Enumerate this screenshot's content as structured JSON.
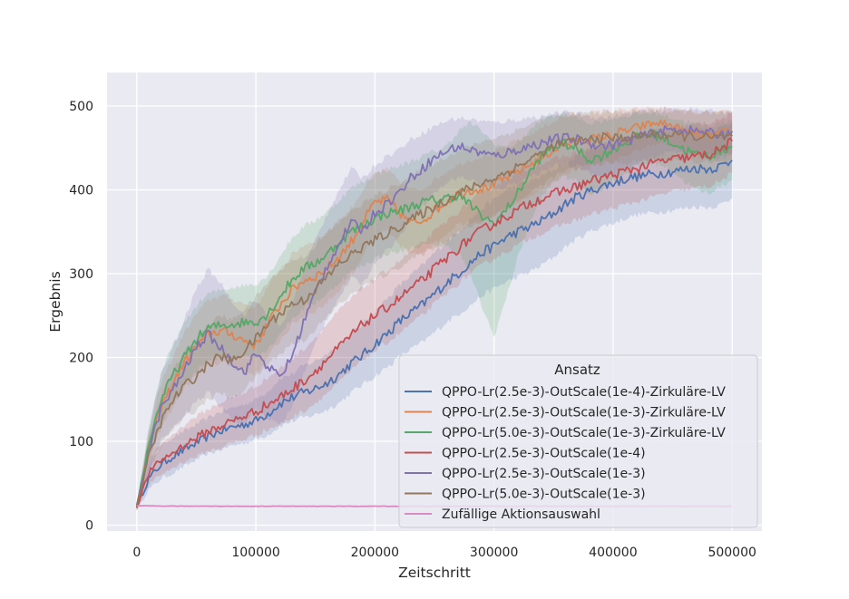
{
  "chart_data": {
    "type": "line",
    "xlabel": "Zeitschritt",
    "ylabel": "Ergebnis",
    "xlim": [
      -25000,
      525000
    ],
    "ylim": [
      -7,
      540
    ],
    "xticks": [
      0,
      100000,
      200000,
      300000,
      400000,
      500000
    ],
    "yticks": [
      0,
      100,
      200,
      300,
      400,
      500
    ],
    "grid": true,
    "legend": {
      "title": "Ansatz",
      "placement": "lower-right"
    },
    "x": [
      0,
      10000,
      20000,
      30000,
      40000,
      50000,
      60000,
      70000,
      80000,
      90000,
      100000,
      110000,
      120000,
      130000,
      140000,
      150000,
      160000,
      170000,
      180000,
      190000,
      200000,
      210000,
      220000,
      230000,
      240000,
      250000,
      260000,
      270000,
      280000,
      290000,
      300000,
      310000,
      320000,
      330000,
      340000,
      350000,
      360000,
      370000,
      380000,
      390000,
      400000,
      410000,
      420000,
      430000,
      440000,
      450000,
      460000,
      470000,
      480000,
      490000,
      500000
    ],
    "series": [
      {
        "name": "QPPO-Lr(2.5e-3)-OutScale(1e-4)-Zirkuläre-LV",
        "color": "#4c72b0",
        "values": [
          22,
          55,
          72,
          82,
          90,
          98,
          106,
          112,
          117,
          120,
          125,
          133,
          145,
          152,
          158,
          163,
          170,
          180,
          193,
          203,
          216,
          228,
          242,
          253,
          263,
          276,
          289,
          300,
          313,
          325,
          333,
          343,
          350,
          356,
          363,
          372,
          383,
          392,
          398,
          404,
          408,
          413,
          416,
          418,
          420,
          422,
          424,
          426,
          425,
          428,
          435
        ],
        "upper": [
          26,
          70,
          95,
          105,
          112,
          120,
          128,
          135,
          140,
          144,
          150,
          160,
          175,
          180,
          190,
          196,
          205,
          215,
          228,
          240,
          255,
          270,
          285,
          298,
          310,
          325,
          338,
          350,
          365,
          378,
          388,
          400,
          405,
          410,
          416,
          424,
          432,
          440,
          446,
          452,
          456,
          460,
          462,
          465,
          466,
          468,
          470,
          472,
          471,
          474,
          480
        ],
        "lower": [
          18,
          42,
          55,
          62,
          70,
          78,
          85,
          90,
          95,
          98,
          102,
          108,
          118,
          124,
          128,
          132,
          138,
          146,
          158,
          168,
          178,
          188,
          200,
          210,
          218,
          230,
          242,
          252,
          262,
          274,
          282,
          290,
          296,
          302,
          310,
          320,
          332,
          342,
          350,
          356,
          360,
          366,
          370,
          372,
          374,
          376,
          378,
          380,
          379,
          382,
          390
        ]
      },
      {
        "name": "QPPO-Lr(2.5e-3)-OutScale(1e-3)-Zirkuläre-LV",
        "color": "#dd8452",
        "values": [
          22,
          92,
          140,
          168,
          195,
          212,
          228,
          232,
          228,
          220,
          215,
          240,
          262,
          280,
          292,
          297,
          307,
          320,
          338,
          362,
          385,
          388,
          374,
          360,
          364,
          375,
          386,
          396,
          400,
          402,
          406,
          414,
          422,
          430,
          438,
          448,
          454,
          458,
          460,
          462,
          466,
          470,
          474,
          478,
          480,
          476,
          470,
          466,
          464,
          466,
          470
        ],
        "upper": [
          26,
          110,
          168,
          200,
          230,
          252,
          268,
          274,
          270,
          264,
          260,
          284,
          305,
          322,
          334,
          340,
          350,
          362,
          378,
          400,
          420,
          424,
          412,
          400,
          402,
          412,
          422,
          430,
          436,
          440,
          444,
          452,
          460,
          466,
          474,
          482,
          488,
          490,
          492,
          493,
          494,
          495,
          496,
          497,
          498,
          496,
          494,
          492,
          491,
          492,
          494
        ],
        "lower": [
          18,
          76,
          114,
          140,
          164,
          178,
          190,
          194,
          190,
          184,
          180,
          200,
          220,
          238,
          250,
          256,
          266,
          280,
          298,
          322,
          346,
          350,
          336,
          322,
          326,
          336,
          348,
          360,
          362,
          364,
          368,
          376,
          384,
          392,
          400,
          412,
          418,
          424,
          426,
          430,
          434,
          440,
          446,
          452,
          456,
          452,
          446,
          440,
          438,
          440,
          444
        ]
      },
      {
        "name": "QPPO-Lr(5.0e-3)-OutScale(1e-3)-Zirkuläre-LV",
        "color": "#55a868",
        "values": [
          22,
          97,
          148,
          178,
          200,
          222,
          235,
          238,
          240,
          242,
          243,
          252,
          272,
          292,
          306,
          313,
          323,
          338,
          350,
          358,
          366,
          372,
          375,
          380,
          385,
          388,
          390,
          394,
          382,
          368,
          360,
          376,
          396,
          420,
          440,
          452,
          455,
          448,
          436,
          440,
          449,
          456,
          462,
          466,
          464,
          456,
          448,
          442,
          440,
          446,
          452
        ],
        "upper": [
          26,
          118,
          180,
          214,
          240,
          262,
          276,
          280,
          284,
          286,
          288,
          298,
          320,
          342,
          356,
          364,
          374,
          388,
          402,
          410,
          418,
          424,
          428,
          434,
          440,
          446,
          452,
          470,
          480,
          470,
          455,
          450,
          456,
          470,
          484,
          490,
          490,
          486,
          480,
          482,
          486,
          488,
          490,
          492,
          490,
          486,
          482,
          478,
          476,
          480,
          484
        ],
        "lower": [
          18,
          80,
          120,
          146,
          166,
          184,
          196,
          198,
          200,
          202,
          202,
          210,
          228,
          246,
          258,
          266,
          276,
          290,
          302,
          310,
          318,
          324,
          326,
          330,
          334,
          334,
          332,
          326,
          300,
          260,
          225,
          270,
          320,
          360,
          390,
          410,
          416,
          410,
          396,
          400,
          410,
          420,
          428,
          432,
          430,
          422,
          410,
          400,
          396,
          404,
          412
        ]
      },
      {
        "name": "QPPO-Lr(2.5e-3)-OutScale(1e-4)",
        "color": "#c44e52",
        "values": [
          22,
          62,
          77,
          86,
          96,
          104,
          112,
          118,
          124,
          130,
          136,
          144,
          152,
          162,
          172,
          184,
          198,
          212,
          226,
          240,
          250,
          260,
          270,
          282,
          292,
          306,
          318,
          330,
          342,
          352,
          360,
          368,
          376,
          384,
          390,
          395,
          400,
          404,
          410,
          414,
          418,
          422,
          426,
          430,
          434,
          436,
          438,
          440,
          442,
          448,
          458
        ],
        "upper": [
          26,
          78,
          96,
          108,
          120,
          130,
          138,
          146,
          152,
          158,
          166,
          176,
          186,
          198,
          210,
          224,
          240,
          256,
          270,
          284,
          294,
          304,
          314,
          326,
          336,
          350,
          362,
          374,
          386,
          396,
          404,
          412,
          420,
          426,
          432,
          436,
          440,
          444,
          450,
          454,
          458,
          462,
          466,
          470,
          472,
          474,
          476,
          478,
          480,
          484,
          490
        ],
        "lower": [
          18,
          48,
          60,
          68,
          76,
          82,
          88,
          92,
          98,
          102,
          108,
          114,
          120,
          128,
          136,
          146,
          158,
          170,
          184,
          198,
          208,
          218,
          228,
          240,
          250,
          264,
          276,
          288,
          300,
          310,
          318,
          326,
          334,
          342,
          348,
          354,
          360,
          364,
          370,
          374,
          378,
          382,
          386,
          390,
          394,
          398,
          400,
          402,
          404,
          410,
          420
        ]
      },
      {
        "name": "QPPO-Lr(2.5e-3)-OutScale(1e-3)",
        "color": "#8172b3",
        "values": [
          22,
          88,
          138,
          160,
          185,
          212,
          228,
          212,
          196,
          182,
          205,
          190,
          176,
          200,
          242,
          278,
          310,
          336,
          360,
          352,
          373,
          384,
          396,
          414,
          426,
          438,
          446,
          452,
          448,
          444,
          440,
          444,
          448,
          452,
          456,
          460,
          462,
          460,
          456,
          452,
          454,
          458,
          462,
          466,
          470,
          472,
          472,
          470,
          468,
          466,
          470
        ],
        "upper": [
          26,
          112,
          178,
          210,
          245,
          282,
          305,
          290,
          268,
          250,
          268,
          252,
          236,
          262,
          305,
          340,
          372,
          400,
          425,
          414,
          430,
          440,
          448,
          460,
          468,
          476,
          482,
          486,
          484,
          482,
          480,
          482,
          484,
          486,
          488,
          490,
          492,
          490,
          488,
          486,
          487,
          490,
          493,
          495,
          496,
          497,
          497,
          496,
          494,
          492,
          494
        ],
        "lower": [
          18,
          66,
          100,
          115,
          130,
          148,
          158,
          142,
          128,
          118,
          140,
          128,
          118,
          140,
          180,
          216,
          248,
          272,
          294,
          288,
          314,
          328,
          342,
          366,
          382,
          396,
          408,
          416,
          412,
          406,
          400,
          404,
          410,
          416,
          422,
          428,
          430,
          428,
          422,
          416,
          418,
          424,
          430,
          436,
          442,
          446,
          446,
          442,
          440,
          438,
          444
        ]
      },
      {
        "name": "QPPO-Lr(5.0e-3)-OutScale(1e-3)",
        "color": "#937860",
        "values": [
          22,
          82,
          122,
          148,
          166,
          178,
          192,
          202,
          195,
          208,
          222,
          240,
          252,
          264,
          268,
          282,
          296,
          312,
          322,
          332,
          340,
          348,
          356,
          364,
          372,
          380,
          388,
          396,
          402,
          408,
          414,
          420,
          428,
          436,
          444,
          452,
          456,
          458,
          460,
          462,
          462,
          462,
          464,
          466,
          466,
          464,
          464,
          464,
          462,
          462,
          464
        ],
        "upper": [
          26,
          102,
          152,
          184,
          206,
          222,
          238,
          250,
          244,
          258,
          272,
          290,
          304,
          316,
          320,
          334,
          348,
          364,
          374,
          384,
          392,
          400,
          408,
          416,
          424,
          432,
          440,
          446,
          452,
          458,
          462,
          466,
          472,
          478,
          484,
          488,
          490,
          491,
          492,
          493,
          493,
          493,
          494,
          494,
          494,
          493,
          493,
          493,
          492,
          492,
          493
        ],
        "lower": [
          18,
          64,
          94,
          114,
          128,
          138,
          150,
          158,
          150,
          162,
          176,
          192,
          204,
          216,
          220,
          234,
          248,
          264,
          274,
          284,
          292,
          300,
          308,
          316,
          324,
          332,
          340,
          350,
          356,
          362,
          370,
          378,
          386,
          396,
          406,
          416,
          422,
          426,
          430,
          432,
          432,
          432,
          434,
          436,
          436,
          434,
          434,
          434,
          432,
          432,
          434
        ]
      },
      {
        "name": "Zufällige Aktionsauswahl",
        "color": "#da8bc3",
        "values": [
          23,
          23,
          22.8,
          22.8,
          22.6,
          22.7,
          22.8,
          22.6,
          22.5,
          22.6,
          22.5,
          22.6,
          22.7,
          22.6,
          22.5,
          22.6,
          22.6,
          22.5,
          22.6,
          22.5,
          22.6,
          22.6,
          22.5,
          22.6,
          22.6,
          22.5,
          22.6,
          22.6,
          22.5,
          22.6,
          22.6,
          22.5,
          22.6,
          22.6,
          22.5,
          22.6,
          22.6,
          22.5,
          22.6,
          22.6,
          22.5,
          22.6,
          22.6,
          22.5,
          22.6,
          22.6,
          22.5,
          22.6,
          22.6,
          22.5,
          22.6
        ],
        "upper": [
          24,
          24,
          23.6,
          23.6,
          23.4,
          23.5,
          23.6,
          23.4,
          23.3,
          23.4,
          23.3,
          23.4,
          23.5,
          23.4,
          23.3,
          23.4,
          23.4,
          23.3,
          23.4,
          23.3,
          23.4,
          23.4,
          23.3,
          23.4,
          23.4,
          23.3,
          23.4,
          23.4,
          23.3,
          23.4,
          23.4,
          23.3,
          23.4,
          23.4,
          23.3,
          23.4,
          23.4,
          23.3,
          23.4,
          23.4,
          23.3,
          23.4,
          23.4,
          23.3,
          23.4,
          23.4,
          23.3,
          23.4,
          23.4,
          23.3,
          23.4
        ],
        "lower": [
          22,
          22,
          22,
          22,
          21.8,
          21.9,
          22,
          21.8,
          21.7,
          21.8,
          21.7,
          21.8,
          21.9,
          21.8,
          21.7,
          21.8,
          21.8,
          21.7,
          21.8,
          21.7,
          21.8,
          21.8,
          21.7,
          21.8,
          21.8,
          21.7,
          21.8,
          21.8,
          21.7,
          21.8,
          21.8,
          21.7,
          21.8,
          21.8,
          21.7,
          21.8,
          21.8,
          21.7,
          21.8,
          21.8,
          21.7,
          21.8,
          21.8,
          21.7,
          21.8,
          21.8,
          21.7,
          21.8,
          21.8,
          21.7,
          21.8
        ]
      }
    ]
  }
}
